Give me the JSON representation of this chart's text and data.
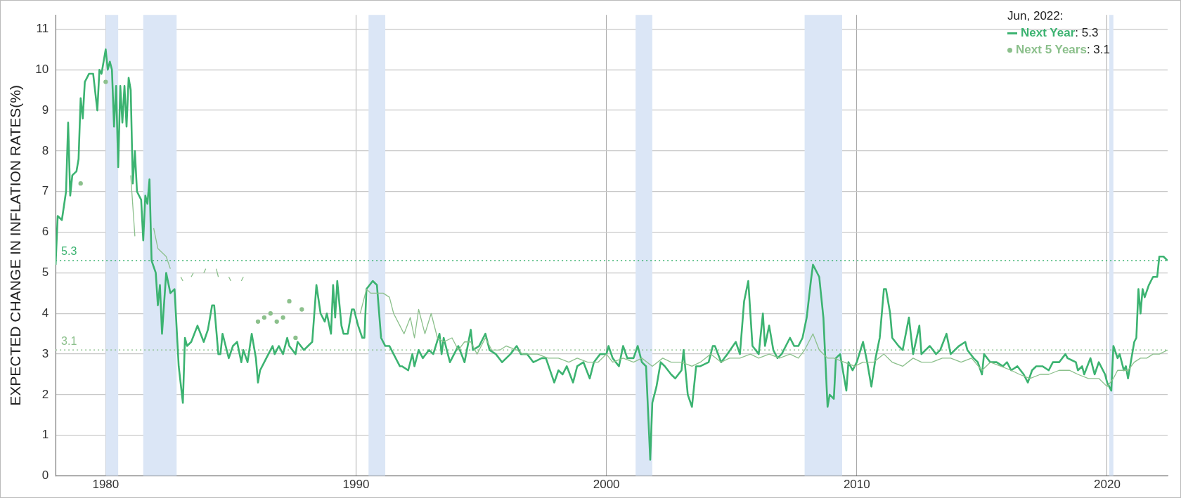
{
  "chart_data": {
    "type": "line",
    "ylabel": "EXPECTED CHANGE IN INFLATION RATES(%)",
    "legend_title": "Jun, 2022:",
    "annotations": [
      ": 5.3",
      ": 3.1"
    ],
    "legend": "top right",
    "grid": true,
    "xlim": [
      "1978-01",
      "2022-06"
    ],
    "xticks": [
      "1980",
      "1990",
      "2000",
      "2010",
      "2020"
    ],
    "ylim": [
      0,
      11.35
    ],
    "yticks": [
      0,
      1,
      2,
      3,
      4,
      5,
      6,
      7,
      8,
      9,
      10,
      11
    ],
    "bands": [
      {
        "axis": "x",
        "from": "1980-01",
        "to": "1980-07",
        "color": "#dbe6f6"
      },
      {
        "axis": "x",
        "from": "1981-07",
        "to": "1982-11",
        "color": "#dbe6f6"
      },
      {
        "axis": "x",
        "from": "1990-07",
        "to": "1991-03",
        "color": "#dbe6f6"
      },
      {
        "axis": "x",
        "from": "2001-03",
        "to": "2001-11",
        "color": "#dbe6f6"
      },
      {
        "axis": "x",
        "from": "2007-12",
        "to": "2009-06",
        "color": "#dbe6f6"
      },
      {
        "axis": "x",
        "from": "2020-02",
        "to": "2020-04",
        "color": "#dbe6f6"
      }
    ],
    "ref_lines": [
      {
        "axis": "y",
        "value": 5.3,
        "label": "5.3",
        "color": "#3cb371",
        "line_style": "dotted"
      },
      {
        "axis": "y",
        "value": 3.1,
        "label": "3.1",
        "color": "#8cc08c",
        "line_style": "dotted"
      }
    ],
    "series": [
      {
        "name": "Next Year",
        "color": "#3cb371",
        "x": [
          "1978-01",
          "1978-02",
          "1978-04",
          "1978-06",
          "1978-07",
          "1978-08",
          "1978-09",
          "1978-11",
          "1978-12",
          "1979-01",
          "1979-02",
          "1979-03",
          "1979-05",
          "1979-07",
          "1979-09",
          "1979-10",
          "1979-11",
          "1980-01",
          "1980-02",
          "1980-03",
          "1980-04",
          "1980-05",
          "1980-06",
          "1980-07",
          "1980-08",
          "1980-09",
          "1980-10",
          "1980-11",
          "1980-12",
          "1981-01",
          "1981-02",
          "1981-03",
          "1981-04",
          "1981-06",
          "1981-07",
          "1981-08",
          "1981-09",
          "1981-10",
          "1981-11",
          "1982-01",
          "1982-02",
          "1982-03",
          "1982-04",
          "1982-06",
          "1982-08",
          "1982-10",
          "1982-12",
          "1983-02",
          "1983-03",
          "1983-04",
          "1983-06",
          "1983-09",
          "1983-12",
          "1984-02",
          "1984-04",
          "1984-05",
          "1984-07",
          "1984-08",
          "1984-09",
          "1984-10",
          "1984-12",
          "1985-02",
          "1985-04",
          "1985-06",
          "1985-07",
          "1985-09",
          "1985-11",
          "1986-01",
          "1986-02",
          "1986-03",
          "1986-06",
          "1986-07",
          "1986-09",
          "1986-10",
          "1986-12",
          "1987-02",
          "1987-04",
          "1987-05",
          "1987-08",
          "1987-09",
          "1987-12",
          "1988-02",
          "1988-04",
          "1988-06",
          "1988-08",
          "1988-10",
          "1988-11",
          "1989-01",
          "1989-02",
          "1989-03",
          "1989-04",
          "1989-06",
          "1989-07",
          "1989-09",
          "1989-11",
          "1989-12",
          "1990-02",
          "1990-04",
          "1990-05",
          "1990-06",
          "1990-09",
          "1990-11",
          "1991-01",
          "1991-03",
          "1991-05",
          "1991-07",
          "1991-10",
          "1991-11",
          "1992-02",
          "1992-04",
          "1992-05",
          "1992-07",
          "1992-09",
          "1992-12",
          "1993-02",
          "1993-05",
          "1993-06",
          "1993-07",
          "1993-10",
          "1993-12",
          "1994-02",
          "1994-05",
          "1994-08",
          "1994-09",
          "1994-12",
          "1995-03",
          "1995-05",
          "1995-08",
          "1995-11",
          "1996-03",
          "1996-06",
          "1996-08",
          "1996-11",
          "1997-02",
          "1997-06",
          "1997-08",
          "1997-12",
          "1998-02",
          "1998-04",
          "1998-06",
          "1998-09",
          "1998-11",
          "1999-02",
          "1999-05",
          "1999-07",
          "1999-10",
          "2000-01",
          "2000-02",
          "2000-04",
          "2000-07",
          "2000-09",
          "2000-11",
          "2001-02",
          "2001-04",
          "2001-06",
          "2001-08",
          "2001-10",
          "2001-11",
          "2002-01",
          "2002-03",
          "2002-05",
          "2002-08",
          "2002-10",
          "2003-01",
          "2003-02",
          "2003-04",
          "2003-06",
          "2003-08",
          "2003-10",
          "2004-02",
          "2004-04",
          "2004-05",
          "2004-08",
          "2004-11",
          "2005-03",
          "2005-05",
          "2005-07",
          "2005-09",
          "2005-11",
          "2006-02",
          "2006-04",
          "2006-05",
          "2006-07",
          "2006-09",
          "2006-11",
          "2007-01",
          "2007-04",
          "2007-05",
          "2007-07",
          "2007-09",
          "2007-11",
          "2008-01",
          "2008-03",
          "2008-04",
          "2008-07",
          "2008-09",
          "2008-10",
          "2008-11",
          "2008-12",
          "2009-02",
          "2009-03",
          "2009-05",
          "2009-06",
          "2009-08",
          "2009-09",
          "2009-11",
          "2010-01",
          "2010-04",
          "2010-06",
          "2010-08",
          "2010-10",
          "2010-12",
          "2011-02",
          "2011-03",
          "2011-05",
          "2011-06",
          "2011-09",
          "2011-11",
          "2012-02",
          "2012-04",
          "2012-07",
          "2012-08",
          "2012-12",
          "2013-03",
          "2013-05",
          "2013-08",
          "2013-10",
          "2014-02",
          "2014-05",
          "2014-06",
          "2014-09",
          "2014-11",
          "2015-01",
          "2015-02",
          "2015-05",
          "2015-08",
          "2015-11",
          "2016-01",
          "2016-03",
          "2016-06",
          "2016-09",
          "2016-11",
          "2017-01",
          "2017-03",
          "2017-06",
          "2017-09",
          "2017-11",
          "2018-02",
          "2018-05",
          "2018-06",
          "2018-10",
          "2018-11",
          "2019-01",
          "2019-02",
          "2019-05",
          "2019-07",
          "2019-09",
          "2019-12",
          "2020-01",
          "2020-03",
          "2020-04",
          "2020-06",
          "2020-07",
          "2020-09",
          "2020-10",
          "2020-11",
          "2021-01",
          "2021-02",
          "2021-03",
          "2021-04",
          "2021-05",
          "2021-06",
          "2021-07",
          "2021-09",
          "2021-10",
          "2021-11",
          "2022-01",
          "2022-02",
          "2022-04",
          "2022-06"
        ],
        "values": [
          5.2,
          6.4,
          6.3,
          7.0,
          8.7,
          6.9,
          7.4,
          7.5,
          7.8,
          9.3,
          8.8,
          9.7,
          9.9,
          9.9,
          9.0,
          10.0,
          9.9,
          10.5,
          10.0,
          10.2,
          10.0,
          8.6,
          9.6,
          7.6,
          9.6,
          8.7,
          9.6,
          8.6,
          9.8,
          9.5,
          7.2,
          8.0,
          7.0,
          6.8,
          5.8,
          6.9,
          6.7,
          7.3,
          5.3,
          5.0,
          4.2,
          4.7,
          3.5,
          5.0,
          4.5,
          4.6,
          2.7,
          1.8,
          3.4,
          3.2,
          3.3,
          3.7,
          3.3,
          3.6,
          4.2,
          4.2,
          3.0,
          3.0,
          3.5,
          3.3,
          2.9,
          3.2,
          3.3,
          2.8,
          3.1,
          2.8,
          3.5,
          2.9,
          2.3,
          2.6,
          2.9,
          3.0,
          3.2,
          3.0,
          3.2,
          3.0,
          3.4,
          3.2,
          3.0,
          3.3,
          3.1,
          3.2,
          3.3,
          4.7,
          4.0,
          3.8,
          4.0,
          3.5,
          4.7,
          3.9,
          4.8,
          3.7,
          3.5,
          3.5,
          4.1,
          4.1,
          3.7,
          3.4,
          3.4,
          4.6,
          4.8,
          4.7,
          3.4,
          3.2,
          3.2,
          3.0,
          2.7,
          2.7,
          2.6,
          3.0,
          2.7,
          3.1,
          2.9,
          3.1,
          3.0,
          3.5,
          3.0,
          3.4,
          2.8,
          3.0,
          3.2,
          2.8,
          3.6,
          3.1,
          3.2,
          3.5,
          3.1,
          3.0,
          2.8,
          3.0,
          3.2,
          3.0,
          3.0,
          2.8,
          2.9,
          2.9,
          2.3,
          2.6,
          2.5,
          2.7,
          2.3,
          2.7,
          2.8,
          2.4,
          2.8,
          3.0,
          3.0,
          3.2,
          2.9,
          2.7,
          3.2,
          2.9,
          2.9,
          3.2,
          2.8,
          2.7,
          0.4,
          1.8,
          2.2,
          2.8,
          2.7,
          2.5,
          2.4,
          2.6,
          3.1,
          2.0,
          1.7,
          2.7,
          2.7,
          2.8,
          3.2,
          3.2,
          2.8,
          3.0,
          3.3,
          3.0,
          4.3,
          4.8,
          3.2,
          3.0,
          4.0,
          3.2,
          3.7,
          3.1,
          2.9,
          3.0,
          3.3,
          3.4,
          3.2,
          3.2,
          3.4,
          3.9,
          4.8,
          5.2,
          4.9,
          3.9,
          2.8,
          1.7,
          2.0,
          1.9,
          2.9,
          3.0,
          2.7,
          2.1,
          2.8,
          2.6,
          2.8,
          3.3,
          2.8,
          2.2,
          2.9,
          3.4,
          4.6,
          4.6,
          4.0,
          3.4,
          3.2,
          3.1,
          3.9,
          3.0,
          3.7,
          3.0,
          3.2,
          3.0,
          3.1,
          3.5,
          3.0,
          3.2,
          3.3,
          3.1,
          2.9,
          2.8,
          2.5,
          3.0,
          2.8,
          2.8,
          2.7,
          2.8,
          2.6,
          2.7,
          2.5,
          2.3,
          2.6,
          2.7,
          2.7,
          2.6,
          2.8,
          2.8,
          3.0,
          2.9,
          2.8,
          2.6,
          2.7,
          2.5,
          2.9,
          2.5,
          2.8,
          2.5,
          2.3,
          2.1,
          3.2,
          2.9,
          3.0,
          2.6,
          2.7,
          2.4,
          3.0,
          3.3,
          3.4,
          4.6,
          4.0,
          4.6,
          4.4,
          4.7,
          4.8,
          4.9,
          4.9,
          5.4,
          5.4,
          5.3
        ]
      },
      {
        "name": "Next 5 Years",
        "color": "#8cc08c",
        "x": [
          "1979-01",
          "1979-06",
          "1980-01",
          "1980-06",
          "1981-01",
          "1981-03",
          "1981-06",
          "1981-12",
          "1982-02",
          "1982-06",
          "1982-08",
          "1982-10",
          "1983-01",
          "1983-02",
          "1983-04",
          "1983-06",
          "1983-07",
          "1983-09",
          "1983-12",
          "1984-01",
          "1984-03",
          "1984-06",
          "1984-07",
          "1984-09",
          "1984-12",
          "1985-01",
          "1985-03",
          "1985-06",
          "1985-07",
          "1985-10",
          "1986-02",
          "1986-04",
          "1986-05",
          "1986-06",
          "1986-08",
          "1986-09",
          "1986-11",
          "1986-12",
          "1987-02",
          "1987-03",
          "1987-05",
          "1987-06",
          "1987-08",
          "1987-09",
          "1987-11",
          "1988-01",
          "1990-03",
          "1990-06",
          "1990-08",
          "1991-02",
          "1991-05",
          "1991-07",
          "1991-10",
          "1991-12",
          "1992-03",
          "1992-05",
          "1992-07",
          "1992-10",
          "1993-01",
          "1993-04",
          "1993-07",
          "1993-11",
          "1994-02",
          "1994-05",
          "1994-08",
          "1994-11",
          "1995-03",
          "1995-06",
          "1995-10",
          "1996-01",
          "1996-06",
          "1996-09",
          "1996-12",
          "1997-04",
          "1997-09",
          "1998-02",
          "1998-07",
          "1998-11",
          "1999-04",
          "1999-09",
          "2000-01",
          "2000-04",
          "2000-09",
          "2001-02",
          "2001-06",
          "2001-11",
          "2002-04",
          "2002-08",
          "2003-01",
          "2003-06",
          "2003-10",
          "2004-03",
          "2004-08",
          "2004-12",
          "2005-05",
          "2005-10",
          "2006-02",
          "2006-07",
          "2006-12",
          "2007-05",
          "2007-09",
          "2007-12",
          "2008-04",
          "2008-07",
          "2008-11",
          "2009-02",
          "2009-07",
          "2009-12",
          "2010-04",
          "2010-09",
          "2011-02",
          "2011-06",
          "2011-11",
          "2012-04",
          "2012-08",
          "2013-01",
          "2013-06",
          "2013-10",
          "2014-03",
          "2014-08",
          "2015-01",
          "2015-05",
          "2015-10",
          "2016-03",
          "2016-07",
          "2016-12",
          "2017-05",
          "2017-09",
          "2018-02",
          "2018-07",
          "2018-11",
          "2019-04",
          "2019-09",
          "2020-01",
          "2020-04",
          "2020-06",
          "2020-11",
          "2021-02",
          "2021-05",
          "2021-08",
          "2021-11",
          "2022-02",
          "2022-06"
        ],
        "values": [
          7.2,
          null,
          9.7,
          null,
          7.4,
          5.9,
          null,
          6.1,
          5.6,
          5.4,
          5.1,
          null,
          4.9,
          4.8,
          null,
          4.9,
          5.0,
          null,
          5.0,
          5.1,
          null,
          5.1,
          4.9,
          null,
          4.9,
          4.8,
          null,
          4.8,
          4.9,
          null,
          3.8,
          null,
          3.9,
          null,
          4.0,
          null,
          3.8,
          null,
          3.9,
          null,
          4.3,
          null,
          3.4,
          null,
          4.1,
          null,
          4.0,
          4.6,
          4.5,
          4.5,
          4.4,
          4.0,
          3.7,
          3.5,
          3.9,
          3.4,
          4.1,
          3.5,
          4.0,
          3.4,
          3.3,
          3.4,
          3.1,
          3.3,
          3.3,
          3.0,
          3.4,
          3.1,
          3.1,
          3.2,
          3.1,
          3.0,
          3.0,
          3.0,
          2.9,
          2.9,
          2.8,
          2.9,
          2.8,
          2.8,
          3.0,
          2.8,
          2.9,
          2.8,
          2.9,
          2.7,
          2.9,
          2.8,
          2.8,
          2.7,
          2.8,
          3.0,
          2.8,
          2.9,
          2.9,
          3.0,
          2.9,
          3.0,
          2.9,
          3.0,
          2.9,
          3.1,
          3.5,
          3.1,
          2.9,
          2.9,
          2.8,
          2.7,
          2.8,
          2.8,
          3.0,
          2.8,
          2.7,
          2.9,
          2.8,
          2.8,
          2.9,
          2.9,
          2.8,
          2.9,
          2.6,
          2.8,
          2.7,
          2.6,
          2.5,
          2.4,
          2.5,
          2.5,
          2.6,
          2.6,
          2.5,
          2.4,
          2.4,
          2.2,
          2.4,
          2.6,
          2.6,
          2.8,
          2.9,
          2.9,
          3.0,
          3.0,
          3.1
        ]
      }
    ]
  }
}
